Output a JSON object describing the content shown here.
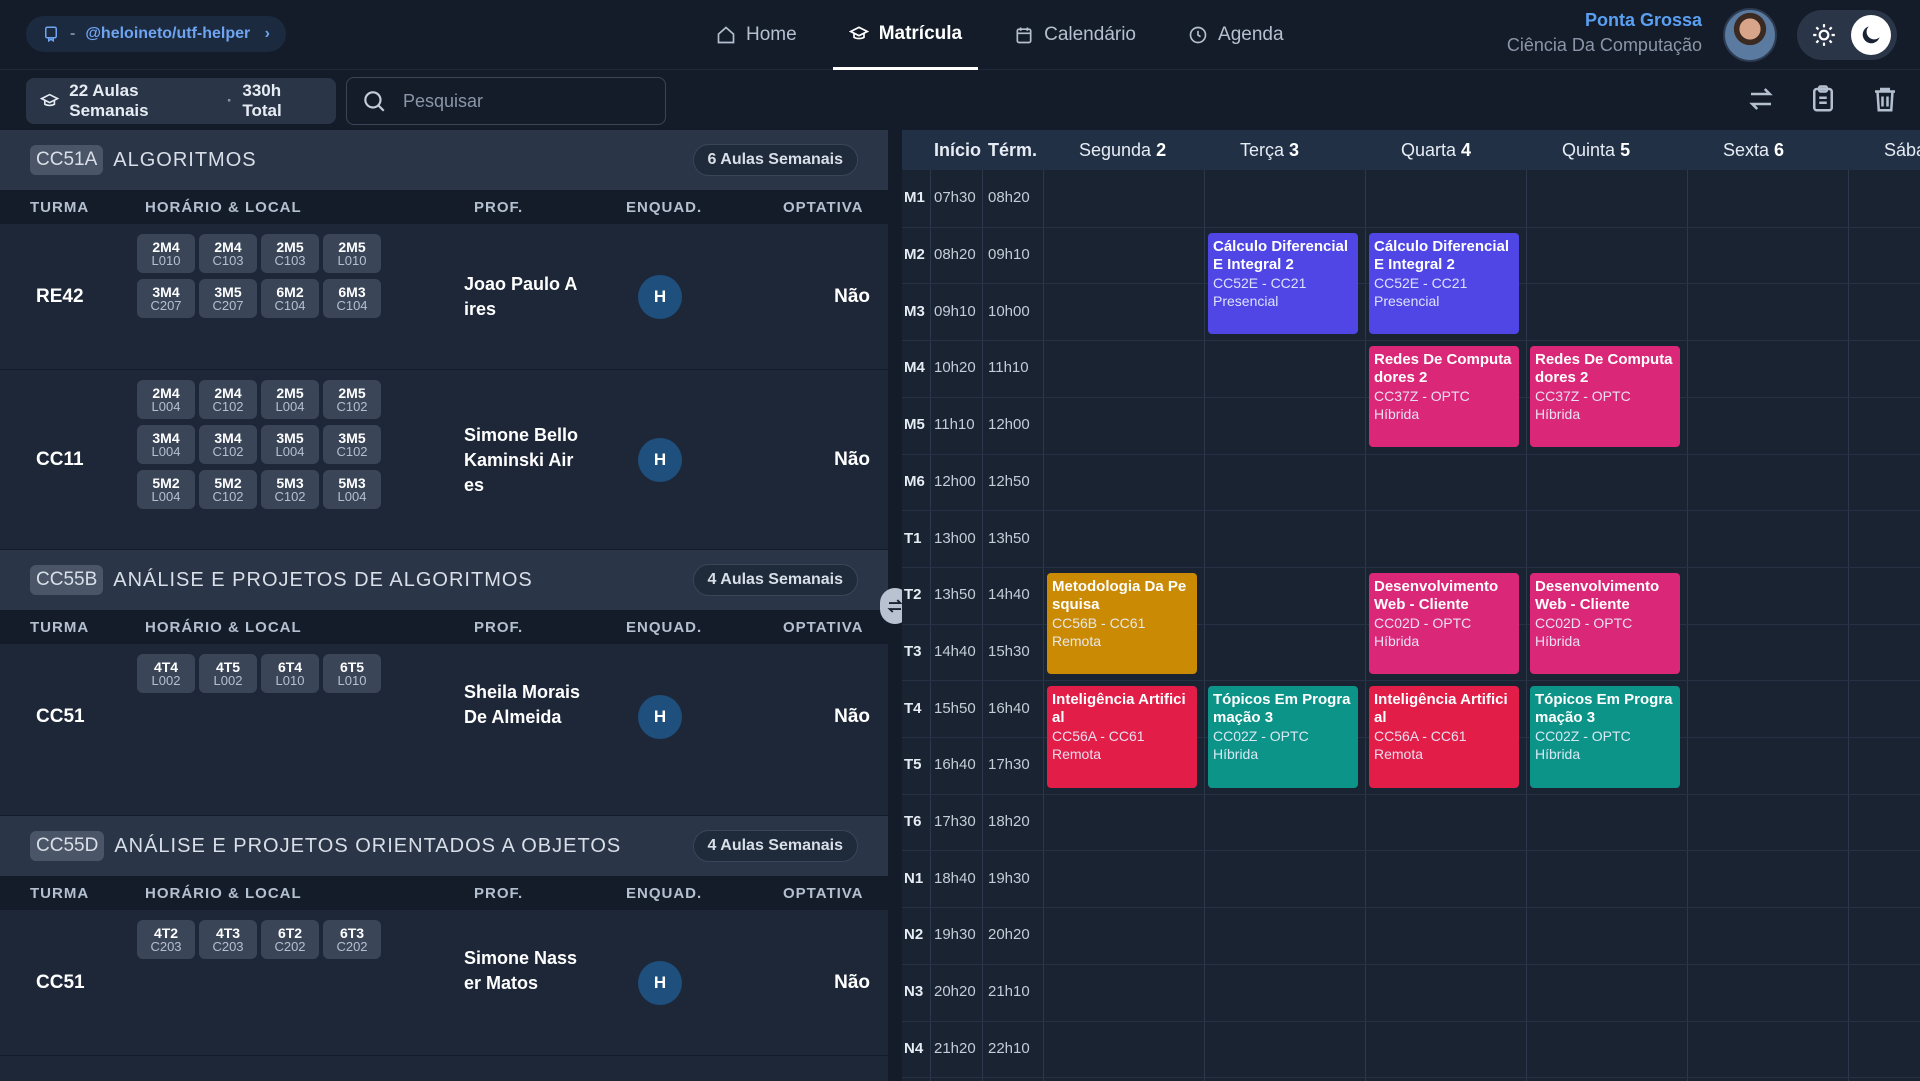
{
  "repo": {
    "prefix": "-",
    "name": "@heloineto/utf-helper"
  },
  "nav": [
    {
      "label": "Home",
      "icon": "home-icon"
    },
    {
      "label": "Matrícula",
      "icon": "graduation-cap-icon",
      "active": true
    },
    {
      "label": "Calendário",
      "icon": "calendar-icon"
    },
    {
      "label": "Agenda",
      "icon": "clock-icon"
    }
  ],
  "user": {
    "campus": "Ponta Grossa",
    "course": "Ciência Da Computação"
  },
  "toolbar": {
    "weekly": "22 Aulas Semanais",
    "dot": "·",
    "total": "330h Total",
    "search_placeholder": "Pesquisar"
  },
  "columns": {
    "turma": "TURMA",
    "horario": "HORÁRIO & LOCAL",
    "prof": "PROF.",
    "enquad": "ENQUAD.",
    "optativa": "OPTATIVA"
  },
  "subjects": [
    {
      "code": "CC51A",
      "name": "ALGORITMOS",
      "badge": "6 Aulas Semanais",
      "rows": [
        {
          "turma": "RE42",
          "prof": "Joao Paulo A ires",
          "enquad": "H",
          "optativa": "Não",
          "slots": [
            [
              "2M4",
              "L010"
            ],
            [
              "2M4",
              "C103"
            ],
            [
              "2M5",
              "C103"
            ],
            [
              "2M5",
              "L010"
            ],
            [
              "3M4",
              "C207"
            ],
            [
              "3M5",
              "C207"
            ],
            [
              "6M2",
              "C104"
            ],
            [
              "6M3",
              "C104"
            ]
          ]
        },
        {
          "turma": "CC11",
          "prof": "Simone Bello Kaminski Air es",
          "enquad": "H",
          "optativa": "Não",
          "slots": [
            [
              "2M4",
              "L004"
            ],
            [
              "2M4",
              "C102"
            ],
            [
              "2M5",
              "L004"
            ],
            [
              "2M5",
              "C102"
            ],
            [
              "3M4",
              "L004"
            ],
            [
              "3M4",
              "C102"
            ],
            [
              "3M5",
              "L004"
            ],
            [
              "3M5",
              "C102"
            ],
            [
              "5M2",
              "L004"
            ],
            [
              "5M2",
              "C102"
            ],
            [
              "5M3",
              "C102"
            ],
            [
              "5M3",
              "L004"
            ]
          ]
        }
      ]
    },
    {
      "code": "CC55B",
      "name": "ANÁLISE E PROJETOS DE ALGORITMOS",
      "badge": "4 Aulas Semanais",
      "rows": [
        {
          "turma": "CC51",
          "prof": "Sheila Morais De Almeida",
          "enquad": "H",
          "optativa": "Não",
          "slots": [
            [
              "4T4",
              "L002"
            ],
            [
              "4T5",
              "L002"
            ],
            [
              "6T4",
              "L010"
            ],
            [
              "6T5",
              "L010"
            ]
          ]
        }
      ]
    },
    {
      "code": "CC55D",
      "name": "ANÁLISE E PROJETOS ORIENTADOS A OBJETOS",
      "badge": "4 Aulas Semanais",
      "rows": [
        {
          "turma": "CC51",
          "prof": "Simone Nass er Matos",
          "enquad": "H",
          "optativa": "Não",
          "slots": [
            [
              "4T2",
              "C203"
            ],
            [
              "4T3",
              "C203"
            ],
            [
              "6T2",
              "C202"
            ],
            [
              "6T3",
              "C202"
            ]
          ]
        }
      ]
    }
  ],
  "schedule": {
    "head_start": "Início",
    "head_end": "Térm.",
    "days": [
      {
        "name": "Segunda",
        "num": "2"
      },
      {
        "name": "Terça",
        "num": "3"
      },
      {
        "name": "Quarta",
        "num": "4"
      },
      {
        "name": "Quinta",
        "num": "5"
      },
      {
        "name": "Sexta",
        "num": "6"
      },
      {
        "name": "Sába",
        "num": ""
      }
    ],
    "times": [
      [
        "M1",
        "07h30",
        "08h20"
      ],
      [
        "M2",
        "08h20",
        "09h10"
      ],
      [
        "M3",
        "09h10",
        "10h00"
      ],
      [
        "M4",
        "10h20",
        "11h10"
      ],
      [
        "M5",
        "11h10",
        "12h00"
      ],
      [
        "M6",
        "12h00",
        "12h50"
      ],
      [
        "T1",
        "13h00",
        "13h50"
      ],
      [
        "T2",
        "13h50",
        "14h40"
      ],
      [
        "T3",
        "14h40",
        "15h30"
      ],
      [
        "T4",
        "15h50",
        "16h40"
      ],
      [
        "T5",
        "16h40",
        "17h30"
      ],
      [
        "T6",
        "17h30",
        "18h20"
      ],
      [
        "N1",
        "18h40",
        "19h30"
      ],
      [
        "N2",
        "19h30",
        "20h20"
      ],
      [
        "N3",
        "20h20",
        "21h10"
      ],
      [
        "N4",
        "21h20",
        "22h10"
      ]
    ],
    "events": [
      {
        "day": 1,
        "start": 1,
        "span": 2,
        "name": "Cálculo Diferencial E Integral 2",
        "code": "CC52E - CC21",
        "mode": "Presencial",
        "color": "#4f46e5"
      },
      {
        "day": 2,
        "start": 1,
        "span": 2,
        "name": "Cálculo Diferencial E Integral 2",
        "code": "CC52E - CC21",
        "mode": "Presencial",
        "color": "#4f46e5"
      },
      {
        "day": 2,
        "start": 3,
        "span": 2,
        "name": "Redes De Computa dores 2",
        "code": "CC37Z - OPTC",
        "mode": "Híbrida",
        "color": "#db2777"
      },
      {
        "day": 3,
        "start": 3,
        "span": 2,
        "name": "Redes De Computa dores 2",
        "code": "CC37Z - OPTC",
        "mode": "Híbrida",
        "color": "#db2777"
      },
      {
        "day": 0,
        "start": 7,
        "span": 2,
        "name": "Metodologia Da Pe squisa",
        "code": "CC56B - CC61",
        "mode": "Remota",
        "color": "#ca8a04"
      },
      {
        "day": 2,
        "start": 7,
        "span": 2,
        "name": "Desenvolvimento Web - Cliente",
        "code": "CC02D - OPTC",
        "mode": "Híbrida",
        "color": "#db2777"
      },
      {
        "day": 3,
        "start": 7,
        "span": 2,
        "name": "Desenvolvimento Web - Cliente",
        "code": "CC02D - OPTC",
        "mode": "Híbrida",
        "color": "#db2777"
      },
      {
        "day": 0,
        "start": 9,
        "span": 2,
        "name": "Inteligência Artifici al",
        "code": "CC56A - CC61",
        "mode": "Remota",
        "color": "#e11d48"
      },
      {
        "day": 1,
        "start": 9,
        "span": 2,
        "name": "Tópicos Em Progra mação 3",
        "code": "CC02Z - OPTC",
        "mode": "Híbrida",
        "color": "#0d9488"
      },
      {
        "day": 2,
        "start": 9,
        "span": 2,
        "name": "Inteligência Artifici al",
        "code": "CC56A - CC61",
        "mode": "Remota",
        "color": "#e11d48"
      },
      {
        "day": 3,
        "start": 9,
        "span": 2,
        "name": "Tópicos Em Progra mação 3",
        "code": "CC02Z - OPTC",
        "mode": "Híbrida",
        "color": "#0d9488"
      }
    ]
  }
}
